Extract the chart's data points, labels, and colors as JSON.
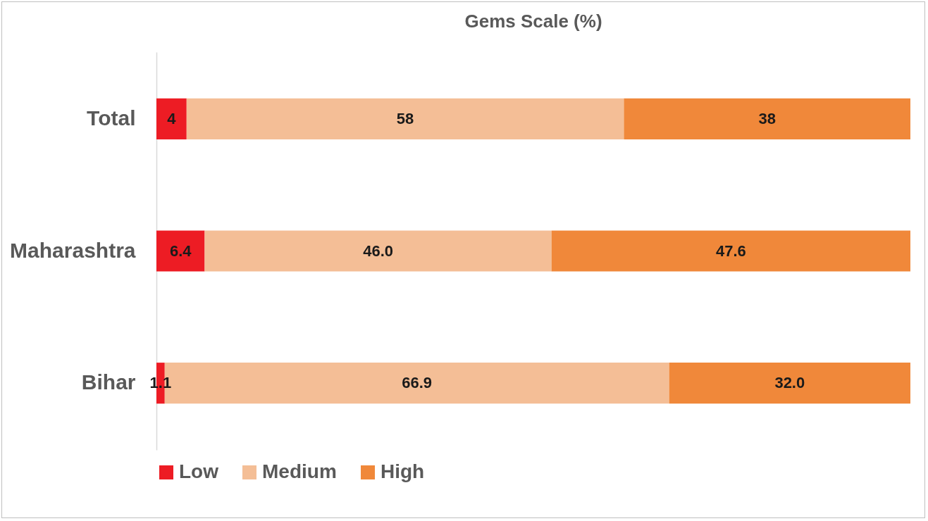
{
  "chart_data": {
    "type": "bar",
    "title": "Gems Scale (%)",
    "orientation": "horizontal",
    "stacked": true,
    "categories": [
      "Total",
      "Maharashtra",
      "Bihar"
    ],
    "xlim": [
      0,
      100
    ],
    "legend": "bottom",
    "series": [
      {
        "name": "Low",
        "color": "#ed1c24",
        "values": [
          4,
          6.4,
          1.1
        ],
        "value_labels": [
          "4",
          "6.4",
          "1.1"
        ]
      },
      {
        "name": "Medium",
        "color": "#f4be96",
        "values": [
          58,
          46.0,
          66.9
        ],
        "value_labels": [
          "58",
          "46.0",
          "66.9"
        ]
      },
      {
        "name": "High",
        "color": "#f0883a",
        "values": [
          38,
          47.6,
          32.0
        ],
        "value_labels": [
          "38",
          "47.6",
          "32.0"
        ]
      }
    ]
  }
}
